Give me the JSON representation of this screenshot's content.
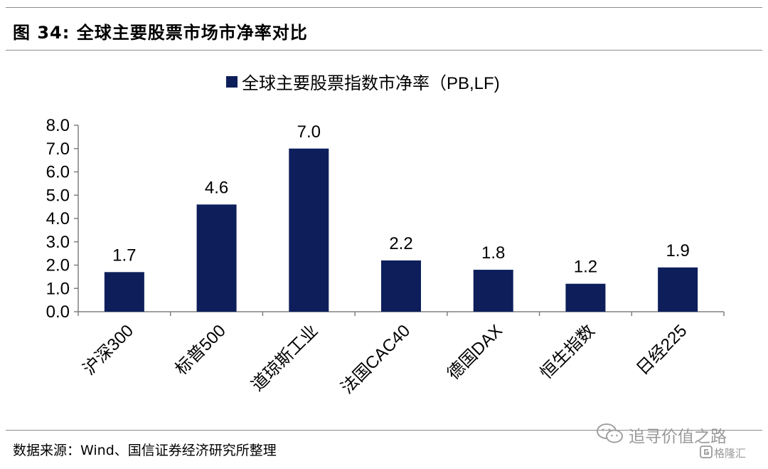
{
  "figure": {
    "title": "图 34:  全球主要股票市场市净率对比",
    "source": "数据来源：Wind、国信证券经济研究所整理"
  },
  "watermark": {
    "text": "追寻价值之路",
    "brand": "格隆汇",
    "icons": [
      "wechat-icon",
      "gelonghui-logo-icon"
    ]
  },
  "colors": {
    "bar": "#0d1e5b",
    "axis": "#808080",
    "rule": "#8c8c8c"
  },
  "chart_data": {
    "type": "bar",
    "legend": {
      "label": "全球主要股票指数市净率（PB,LF)",
      "position": "top-center"
    },
    "categories": [
      "沪深300",
      "标普500",
      "道琼斯工业",
      "法国CAC40",
      "德国DAX",
      "恒生指数",
      "日经225"
    ],
    "series": [
      {
        "name": "全球主要股票指数市净率（PB,LF)",
        "values": [
          1.7,
          4.6,
          7.0,
          2.2,
          1.8,
          1.2,
          1.9
        ]
      }
    ],
    "data_labels": [
      "1.7",
      "4.6",
      "7.0",
      "2.2",
      "1.8",
      "1.2",
      "1.9"
    ],
    "y_ticks": [
      "0.0",
      "1.0",
      "2.0",
      "3.0",
      "4.0",
      "5.0",
      "6.0",
      "7.0",
      "8.0"
    ],
    "ylim": [
      0,
      8
    ],
    "grid": false
  }
}
